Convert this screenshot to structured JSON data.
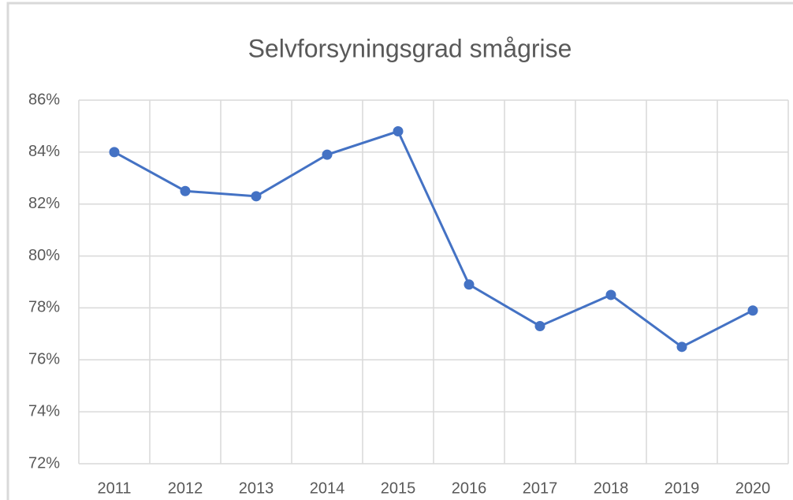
{
  "chart_data": {
    "type": "line",
    "title": "Selvforsyningsgrad smågrise",
    "categories": [
      "2011",
      "2012",
      "2013",
      "2014",
      "2015",
      "2016",
      "2017",
      "2018",
      "2019",
      "2020"
    ],
    "series": [
      {
        "name": "Selvforsyningsgrad",
        "color": "#4472c4",
        "values": [
          84.0,
          82.5,
          82.3,
          83.9,
          84.8,
          78.9,
          77.3,
          78.5,
          76.5,
          77.9
        ]
      }
    ],
    "ylim": [
      72,
      86
    ],
    "yticks": [
      {
        "value": 72,
        "label": "72%"
      },
      {
        "value": 74,
        "label": "74%"
      },
      {
        "value": 76,
        "label": "76%"
      },
      {
        "value": 78,
        "label": "78%"
      },
      {
        "value": 80,
        "label": "80%"
      },
      {
        "value": 82,
        "label": "82%"
      },
      {
        "value": 84,
        "label": "84%"
      },
      {
        "value": 86,
        "label": "86%"
      }
    ],
    "grid": true
  }
}
